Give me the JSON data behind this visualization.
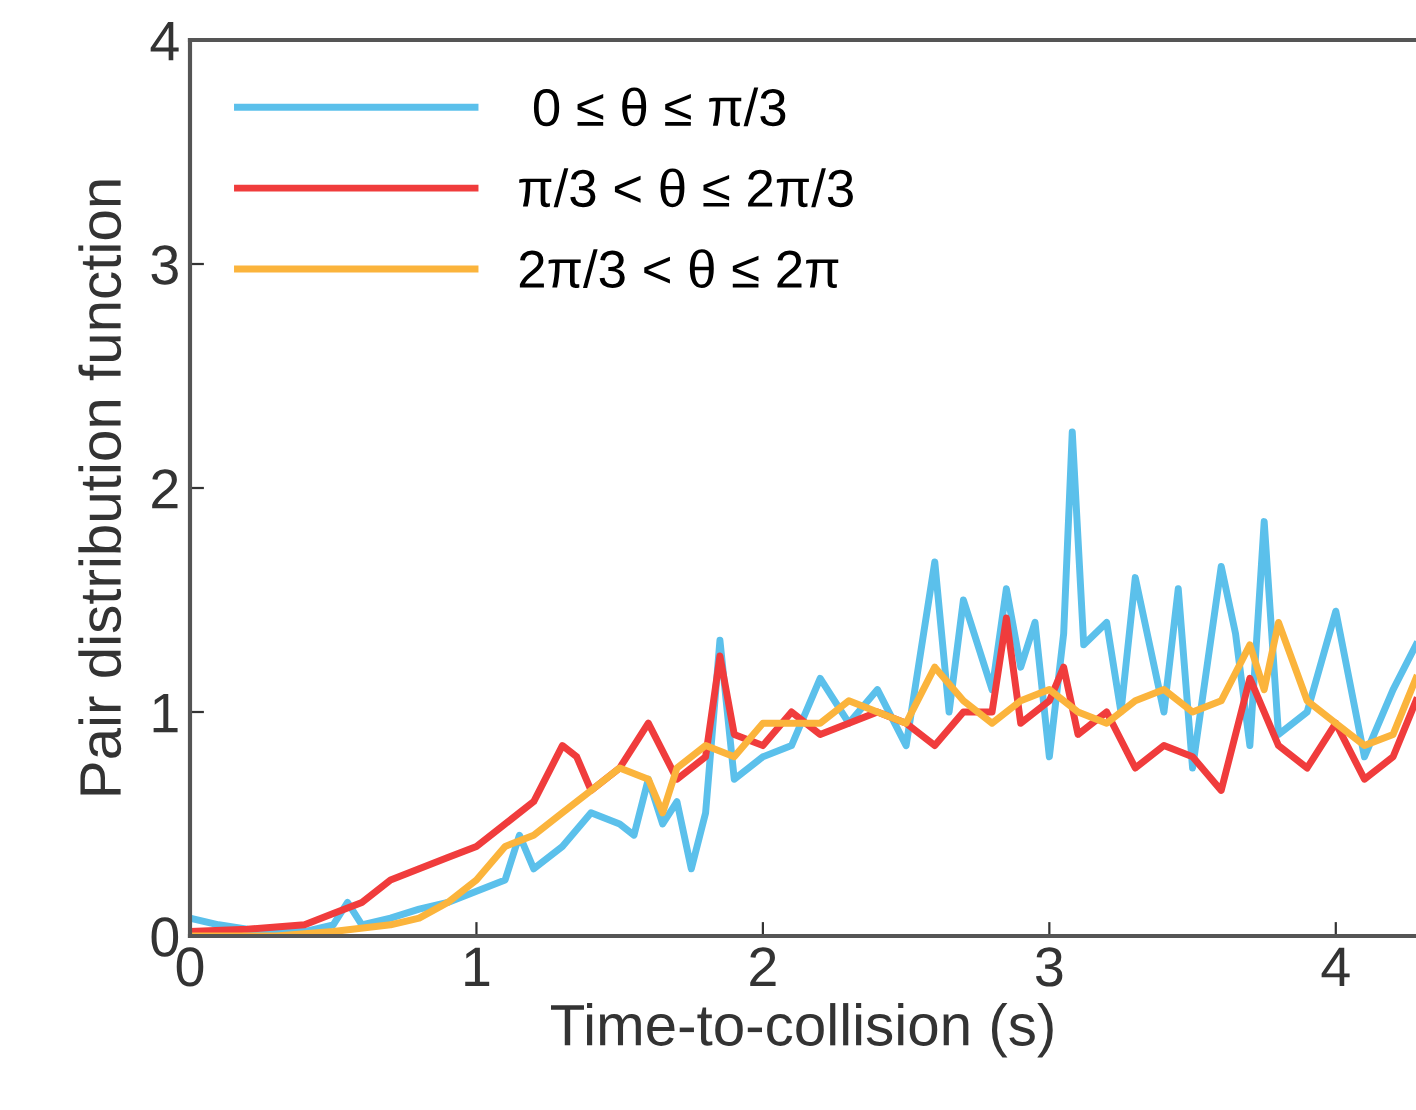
{
  "chart_data": {
    "type": "line",
    "xlabel": "Time-to-collision (s)",
    "ylabel": "Pair distribution function",
    "xlim": [
      0,
      4.28
    ],
    "ylim": [
      0,
      4
    ],
    "xticks": [
      0,
      1,
      2,
      3,
      4
    ],
    "yticks": [
      0,
      1,
      2,
      3,
      4
    ],
    "grid": false,
    "legend": "top left",
    "line_style": "solid",
    "marker": "none",
    "series": [
      {
        "name": " 0 ≤ θ ≤ π/3",
        "color": "#5bc0eb",
        "x": [
          0,
          0.1,
          0.2,
          0.3,
          0.4,
          0.5,
          0.55,
          0.6,
          0.7,
          0.8,
          0.9,
          1.0,
          1.1,
          1.15,
          1.2,
          1.3,
          1.4,
          1.5,
          1.55,
          1.6,
          1.65,
          1.7,
          1.75,
          1.8,
          1.85,
          1.9,
          2.0,
          2.1,
          2.2,
          2.3,
          2.4,
          2.5,
          2.6,
          2.65,
          2.7,
          2.8,
          2.85,
          2.9,
          2.95,
          3.0,
          3.05,
          3.08,
          3.12,
          3.2,
          3.25,
          3.3,
          3.4,
          3.45,
          3.5,
          3.6,
          3.65,
          3.7,
          3.75,
          3.8,
          3.9,
          4.0,
          4.1,
          4.2,
          4.28
        ],
        "values": [
          0.08,
          0.05,
          0.03,
          0.02,
          0.02,
          0.05,
          0.15,
          0.05,
          0.08,
          0.12,
          0.15,
          0.2,
          0.25,
          0.45,
          0.3,
          0.4,
          0.55,
          0.5,
          0.45,
          0.7,
          0.5,
          0.6,
          0.3,
          0.55,
          1.32,
          0.7,
          0.8,
          0.85,
          1.15,
          0.95,
          1.1,
          0.85,
          1.67,
          1.0,
          1.5,
          1.1,
          1.55,
          1.2,
          1.4,
          0.8,
          1.35,
          2.25,
          1.3,
          1.4,
          1.0,
          1.6,
          1.0,
          1.55,
          0.75,
          1.65,
          1.35,
          0.85,
          1.85,
          0.9,
          1.0,
          1.45,
          0.8,
          1.1,
          1.3
        ]
      },
      {
        "name": "π/3 < θ ≤ 2π/3",
        "color": "#f03c3c",
        "x": [
          0,
          0.2,
          0.4,
          0.5,
          0.6,
          0.7,
          0.8,
          0.9,
          1.0,
          1.1,
          1.2,
          1.3,
          1.35,
          1.4,
          1.5,
          1.6,
          1.7,
          1.8,
          1.85,
          1.9,
          2.0,
          2.1,
          2.2,
          2.3,
          2.4,
          2.5,
          2.6,
          2.7,
          2.8,
          2.85,
          2.9,
          3.0,
          3.05,
          3.1,
          3.2,
          3.3,
          3.4,
          3.5,
          3.6,
          3.7,
          3.8,
          3.9,
          4.0,
          4.1,
          4.2,
          4.28
        ],
        "values": [
          0.02,
          0.03,
          0.05,
          0.1,
          0.15,
          0.25,
          0.3,
          0.35,
          0.4,
          0.5,
          0.6,
          0.85,
          0.8,
          0.65,
          0.75,
          0.95,
          0.7,
          0.8,
          1.25,
          0.9,
          0.85,
          1.0,
          0.9,
          0.95,
          1.0,
          0.95,
          0.85,
          1.0,
          1.0,
          1.42,
          0.95,
          1.05,
          1.2,
          0.9,
          1.0,
          0.75,
          0.85,
          0.8,
          0.65,
          1.15,
          0.85,
          0.75,
          0.95,
          0.7,
          0.8,
          1.05
        ]
      },
      {
        "name": "2π/3 < θ ≤ 2π",
        "color": "#fbb43c",
        "x": [
          0,
          0.3,
          0.5,
          0.7,
          0.8,
          0.9,
          1.0,
          1.1,
          1.2,
          1.3,
          1.4,
          1.5,
          1.6,
          1.65,
          1.7,
          1.8,
          1.9,
          2.0,
          2.1,
          2.2,
          2.3,
          2.4,
          2.5,
          2.6,
          2.7,
          2.8,
          2.9,
          3.0,
          3.1,
          3.2,
          3.3,
          3.4,
          3.5,
          3.6,
          3.7,
          3.75,
          3.8,
          3.9,
          4.0,
          4.1,
          4.2,
          4.28
        ],
        "values": [
          0.0,
          0.0,
          0.02,
          0.05,
          0.08,
          0.15,
          0.25,
          0.4,
          0.45,
          0.55,
          0.65,
          0.75,
          0.7,
          0.55,
          0.75,
          0.85,
          0.8,
          0.95,
          0.95,
          0.95,
          1.05,
          1.0,
          0.95,
          1.2,
          1.05,
          0.95,
          1.05,
          1.1,
          1.0,
          0.95,
          1.05,
          1.1,
          1.0,
          1.05,
          1.3,
          1.1,
          1.4,
          1.05,
          0.95,
          0.85,
          0.9,
          1.15
        ]
      }
    ]
  }
}
